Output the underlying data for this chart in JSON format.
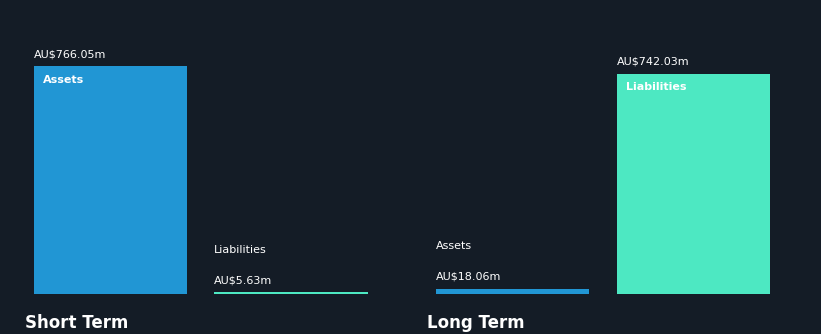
{
  "background_color": "#141c26",
  "short_term": {
    "assets_value": 766.05,
    "liabilities_value": 5.63,
    "assets_label": "Assets",
    "liabilities_label": "Liabilities",
    "assets_value_label": "AU$766.05m",
    "liabilities_value_label": "AU$5.63m",
    "assets_color": "#2196d4",
    "liabilities_color": "#4de8c2",
    "section_label": "Short Term"
  },
  "long_term": {
    "assets_value": 18.06,
    "liabilities_value": 742.03,
    "assets_label": "Assets",
    "liabilities_label": "Liabilities",
    "assets_value_label": "AU$18.06m",
    "liabilities_value_label": "AU$742.03m",
    "assets_color": "#2196d4",
    "liabilities_color": "#4de8c2",
    "section_label": "Long Term"
  },
  "text_color": "#ffffff",
  "label_fontsize": 8,
  "value_fontsize": 8,
  "section_label_fontsize": 12,
  "y_max": 900
}
